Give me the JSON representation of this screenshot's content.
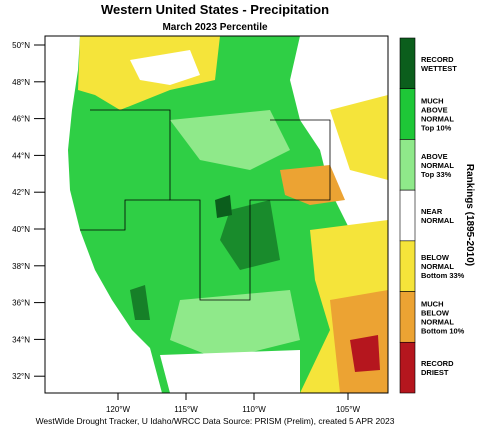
{
  "header": {
    "title": "Western United States - Precipitation",
    "subtitle": "March 2023 Percentile"
  },
  "map": {
    "lat_labels": [
      "50°N",
      "48°N",
      "46°N",
      "44°N",
      "42°N",
      "40°N",
      "38°N",
      "36°N",
      "34°N",
      "32°N"
    ],
    "lon_labels": [
      "120°W",
      "115°W",
      "110°W",
      "105°W"
    ]
  },
  "legend": {
    "title": "Rankings (1895-2010)",
    "entries": [
      {
        "lines": [
          "RECORD",
          "WETTEST"
        ],
        "color": "#0b5e1c"
      },
      {
        "lines": [
          "MUCH",
          "ABOVE",
          "NORMAL",
          "Top 10%"
        ],
        "color": "#1ec737"
      },
      {
        "lines": [
          "ABOVE",
          "NORMAL",
          "Top 33%"
        ],
        "color": "#8fe98a"
      },
      {
        "lines": [
          "NEAR",
          "NORMAL"
        ],
        "color": "#ffffff"
      },
      {
        "lines": [
          "BELOW",
          "NORMAL",
          "Bottom 33%"
        ],
        "color": "#f5e43a"
      },
      {
        "lines": [
          "MUCH",
          "BELOW",
          "NORMAL",
          "Bottom 10%"
        ],
        "color": "#eca333"
      },
      {
        "lines": [
          "RECORD",
          "DRIEST"
        ],
        "color": "#b5161e"
      }
    ]
  },
  "footer": "WestWide Drought Tracker, U Idaho/WRCC Data Source: PRISM (Prelim), created  5 APR 2023"
}
